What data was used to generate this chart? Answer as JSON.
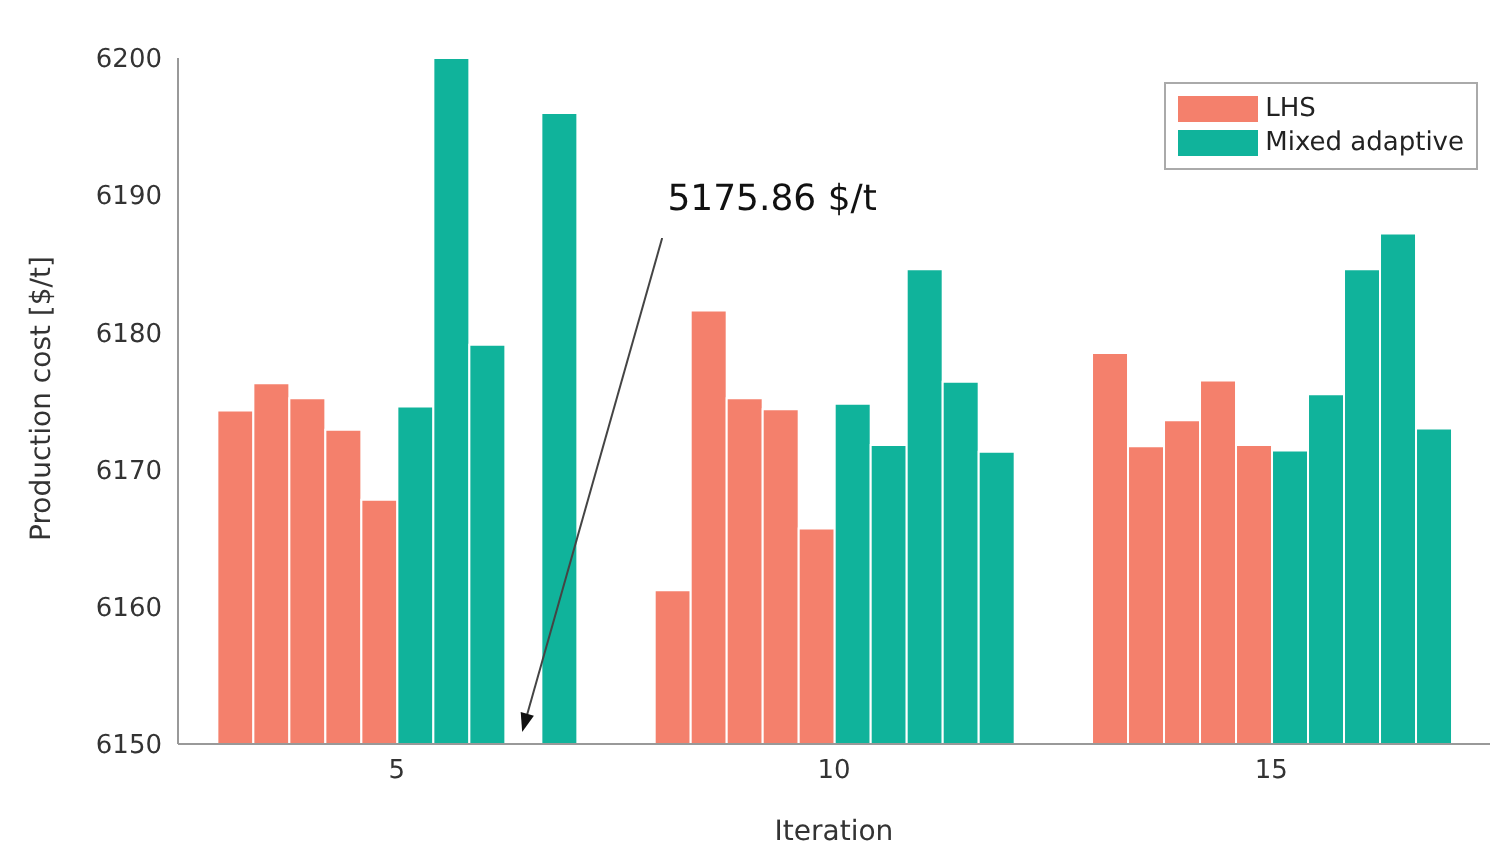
{
  "chart_data": {
    "type": "bar",
    "xlabel": "Iteration",
    "ylabel": "Production cost [$/t]",
    "categories": [
      "5",
      "10",
      "15"
    ],
    "series": [
      {
        "name": "LHS",
        "color": "#f4806c",
        "values": [
          6174.3,
          6161.2,
          6178.5
        ]
      },
      {
        "color": "#f4806c",
        "values": [
          6176.3,
          6181.6,
          6171.7
        ]
      },
      {
        "color": "#f4806c",
        "values": [
          6175.2,
          6175.2,
          6173.6
        ]
      },
      {
        "color": "#f4806c",
        "values": [
          6172.9,
          6174.4,
          6176.5
        ]
      },
      {
        "color": "#f4806c",
        "values": [
          6167.8,
          6165.7,
          6171.8
        ]
      },
      {
        "name": "Mixed adaptive",
        "color": "#10b39b",
        "values": [
          6174.6,
          6174.8,
          6171.4
        ]
      },
      {
        "color": "#10b39b",
        "values": [
          6200,
          6171.8,
          6175.5
        ]
      },
      {
        "color": "#10b39b",
        "values": [
          6179.1,
          6184.6,
          6184.6
        ]
      },
      {
        "color": "#10b39b",
        "values": [
          null,
          6176.4,
          6187.2
        ]
      },
      {
        "color": "#10b39b",
        "values": [
          6196,
          6171.3,
          6173
        ]
      }
    ],
    "ylim": [
      6150,
      6200
    ],
    "yticks": [
      6150,
      6160,
      6170,
      6180,
      6190,
      6200
    ],
    "grid": false,
    "legend": "top right",
    "annotations": [
      "5175.86 $/t"
    ]
  }
}
